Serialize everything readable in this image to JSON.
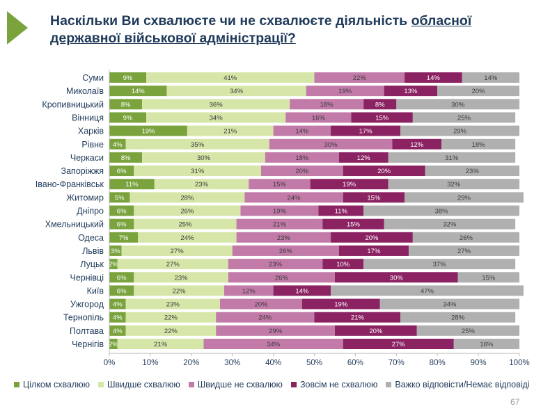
{
  "title": {
    "part1": "Наскільки Ви схвалюєте чи не схвалюєте діяльність ",
    "underlined1": "обласної",
    "underlined2": "державної військової адміністрації?"
  },
  "page_number": "67",
  "chart_data": {
    "type": "bar",
    "orientation": "horizontal",
    "stacked": true,
    "categories": [
      "Суми",
      "Миколаїв",
      "Кропивницький",
      "Вінниця",
      "Харків",
      "Рівне",
      "Черкаси",
      "Запоріжжя",
      "Івано-Франківськ",
      "Житомир",
      "Дніпро",
      "Хмельницький",
      "Одеса",
      "Львів",
      "Луцьк",
      "Чернівці",
      "Київ",
      "Ужгород",
      "Тернопіль",
      "Полтава",
      "Чернігів"
    ],
    "series": [
      {
        "name": "Цілком схвалюю",
        "color": "#7aa33e",
        "values": [
          9,
          14,
          8,
          9,
          19,
          4,
          8,
          6,
          11,
          5,
          6,
          6,
          7,
          3,
          2,
          6,
          6,
          4,
          4,
          4,
          2
        ]
      },
      {
        "name": "Швидше схвалюю",
        "color": "#d6e6a8",
        "values": [
          41,
          34,
          36,
          34,
          21,
          35,
          30,
          31,
          23,
          28,
          26,
          25,
          24,
          27,
          27,
          23,
          22,
          23,
          22,
          22,
          21
        ]
      },
      {
        "name": "Швидше не схвалюю",
        "color": "#c27aa8",
        "values": [
          22,
          19,
          18,
          16,
          14,
          30,
          18,
          20,
          15,
          24,
          19,
          21,
          23,
          26,
          23,
          26,
          12,
          20,
          24,
          29,
          34
        ]
      },
      {
        "name": "Зовсім не схвалюю",
        "color": "#8b2262",
        "values": [
          14,
          13,
          8,
          15,
          17,
          12,
          12,
          20,
          19,
          15,
          11,
          15,
          20,
          17,
          10,
          30,
          14,
          19,
          21,
          20,
          27
        ]
      },
      {
        "name": "Важко відповісти/Немає відповіді",
        "color": "#b0b0b0",
        "values": [
          14,
          20,
          30,
          25,
          29,
          18,
          31,
          23,
          32,
          29,
          38,
          32,
          26,
          27,
          37,
          15,
          47,
          34,
          28,
          25,
          16
        ]
      }
    ],
    "x_ticks": [
      "0%",
      "10%",
      "20%",
      "30%",
      "40%",
      "50%",
      "60%",
      "70%",
      "80%",
      "90%",
      "100%"
    ],
    "xlim": [
      0,
      100
    ],
    "grid": false,
    "legend_position": "bottom"
  }
}
